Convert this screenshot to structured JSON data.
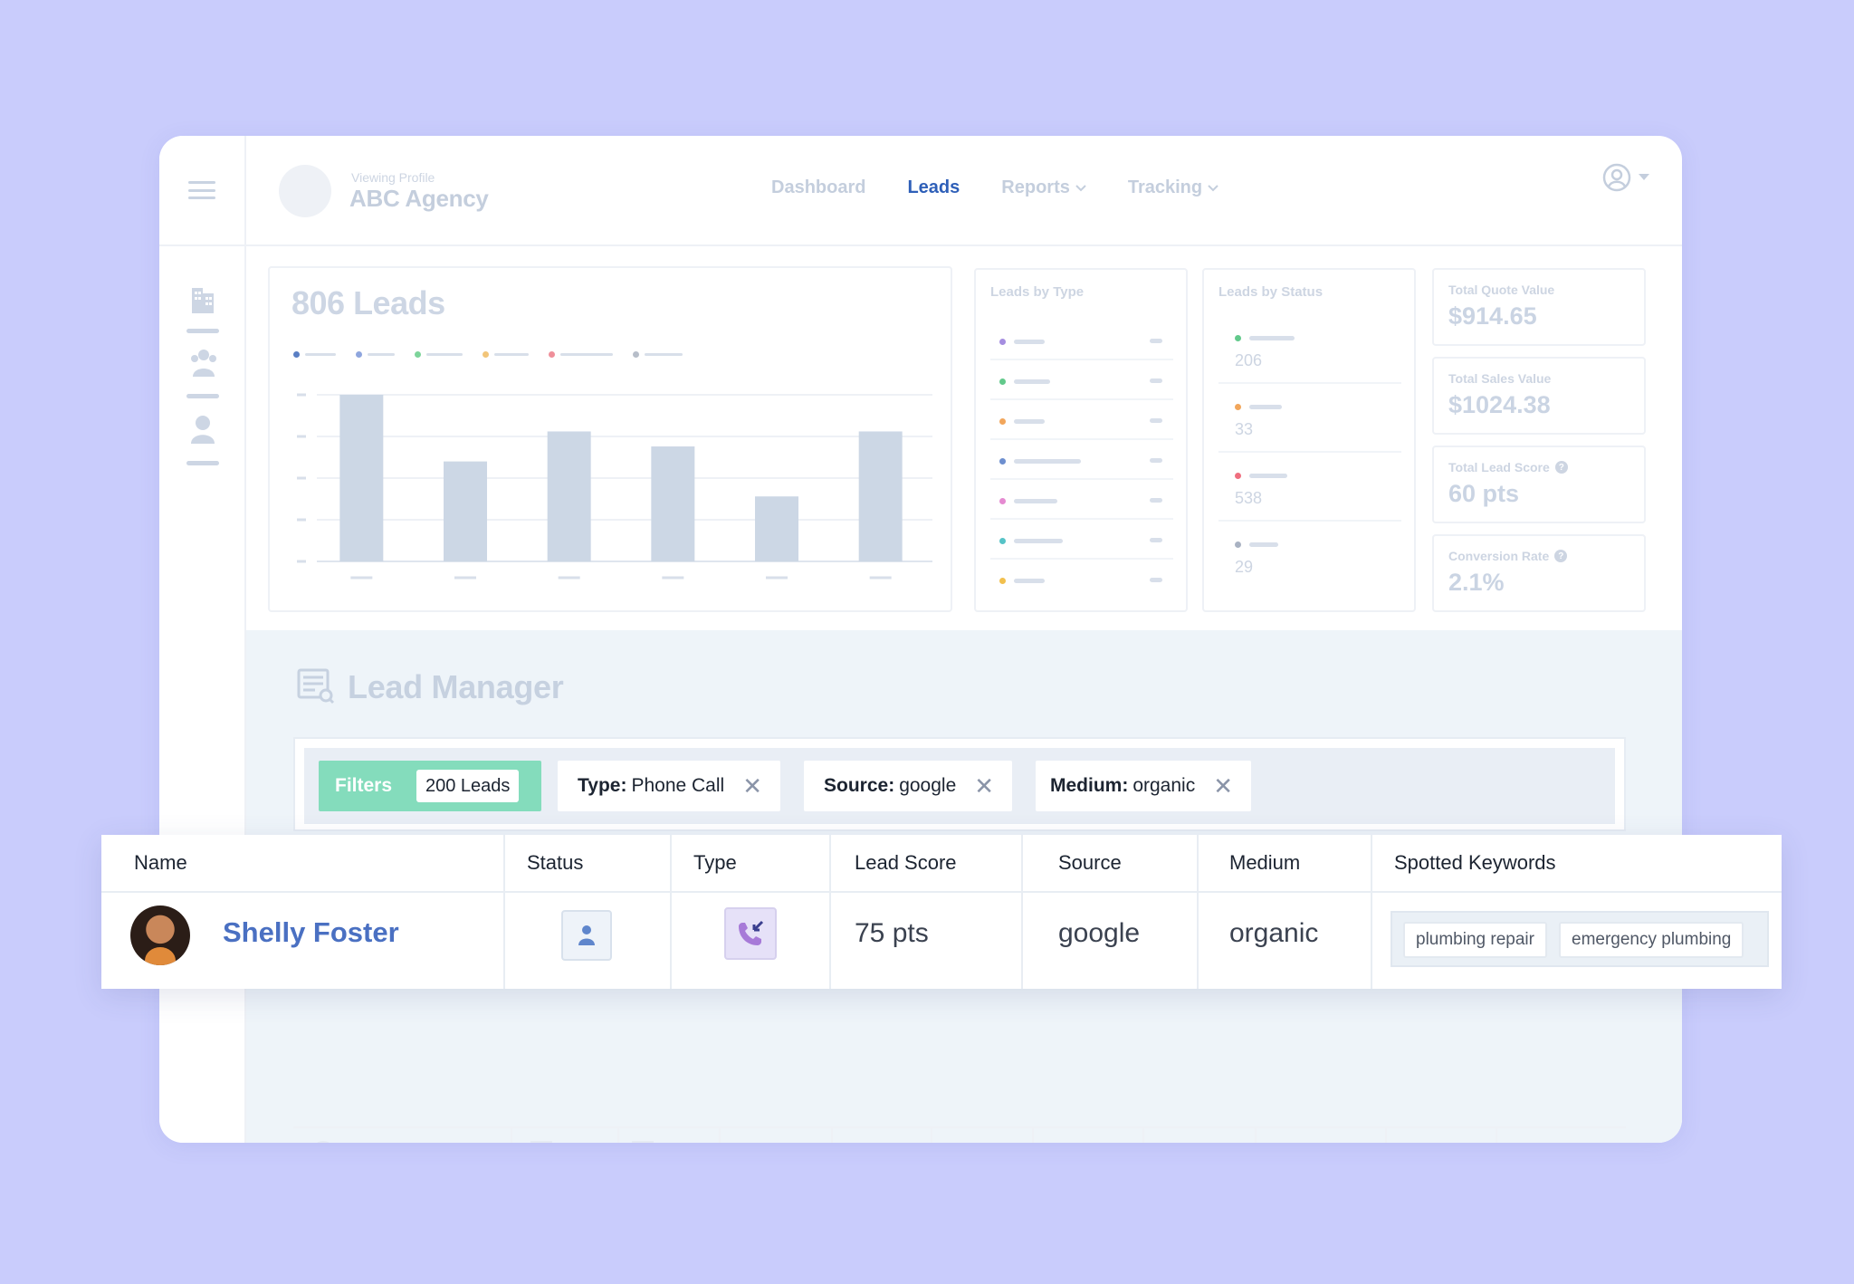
{
  "header": {
    "viewing_label": "Viewing Profile",
    "agency_name": "ABC Agency",
    "nav": [
      {
        "label": "Dashboard",
        "active": false,
        "dropdown": false
      },
      {
        "label": "Leads",
        "active": true,
        "dropdown": false
      },
      {
        "label": "Reports",
        "active": false,
        "dropdown": true
      },
      {
        "label": "Tracking",
        "active": false,
        "dropdown": true
      }
    ],
    "user_icon": "user-circle-icon"
  },
  "sidebar": {
    "menu_icon": "hamburger-menu-icon",
    "items": [
      {
        "icon": "building-icon"
      },
      {
        "icon": "group-icon"
      },
      {
        "icon": "person-icon"
      }
    ]
  },
  "leads_chart": {
    "title": "806 Leads",
    "legend_colors": [
      "#5a7fc4",
      "#8fa6de",
      "#7dd49a",
      "#f2c579",
      "#ef8f9a",
      "#b7bec9"
    ],
    "chart_data": {
      "type": "bar",
      "categories": [
        "",
        "",
        "",
        "",
        "",
        ""
      ],
      "values": [
        100,
        60,
        78,
        69,
        39,
        78
      ],
      "ylim": [
        0,
        100
      ],
      "grid": true
    }
  },
  "leads_by_type": {
    "title": "Leads by Type",
    "dot_colors": [
      "#a58ee0",
      "#62c98b",
      "#f2a65b",
      "#6d8fcf",
      "#e58ad1",
      "#56c3c7",
      "#f2c04d"
    ]
  },
  "leads_by_status": {
    "title": "Leads by Status",
    "rows": [
      {
        "color": "#62c98b",
        "value": "206"
      },
      {
        "color": "#f2a65b",
        "value": "33"
      },
      {
        "color": "#ef6f7f",
        "value": "538"
      },
      {
        "color": "#a9b2c2",
        "value": "29"
      }
    ]
  },
  "kpis": [
    {
      "label": "Total Quote Value",
      "value": "$914.65",
      "help": false
    },
    {
      "label": "Total Sales Value",
      "value": "$1024.38",
      "help": false
    },
    {
      "label": "Total Lead Score",
      "value": "60 pts",
      "help": true
    },
    {
      "label": "Conversion Rate",
      "value": "2.1%",
      "help": true
    }
  ],
  "lead_manager": {
    "title": "Lead Manager",
    "filters": {
      "label": "Filters",
      "count": "200 Leads",
      "chips": [
        {
          "key": "Type:",
          "value": "Phone Call"
        },
        {
          "key": "Source:",
          "value": "google"
        },
        {
          "key": "Medium:",
          "value": "organic"
        }
      ]
    },
    "table": {
      "columns": [
        "Name",
        "Status",
        "Type",
        "Lead Score",
        "Source",
        "Medium",
        "Spotted Keywords"
      ],
      "row": {
        "name": "Shelly Foster",
        "status_icon": "person-icon",
        "type_icon": "incoming-call-icon",
        "lead_score": "75 pts",
        "source": "google",
        "medium": "organic",
        "keywords": [
          "plumbing repair",
          "emergency plumbing"
        ]
      }
    }
  }
}
